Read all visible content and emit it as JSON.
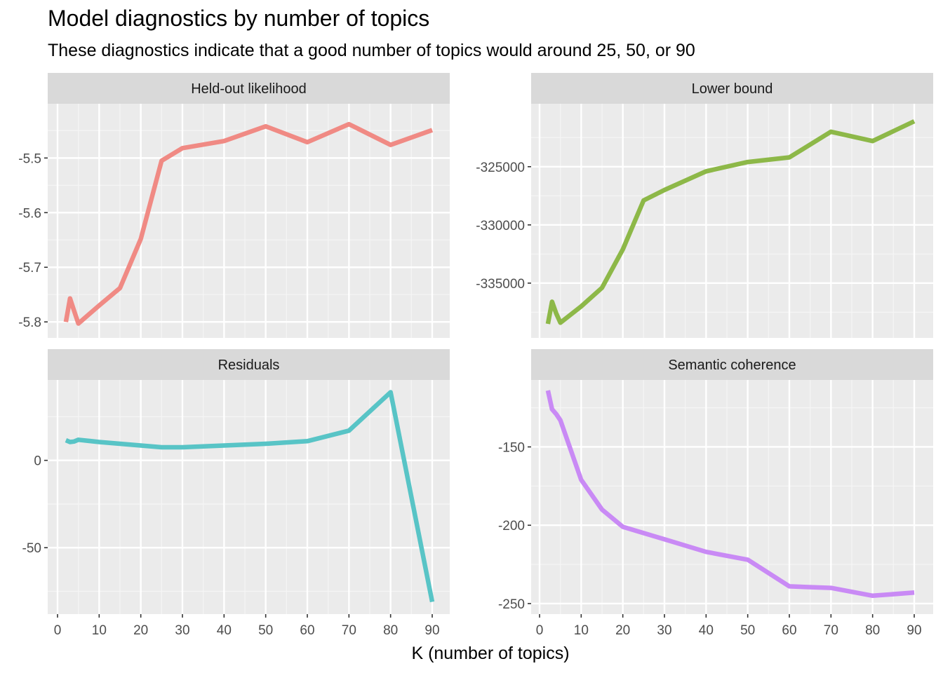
{
  "title": "Model diagnostics by number of topics",
  "subtitle": "These diagnostics indicate that a good number of topics would around 25, 50, or 90",
  "chart_data": {
    "type": "line",
    "xlabel": "K (number of topics)",
    "x": [
      2,
      3,
      4,
      5,
      10,
      15,
      20,
      25,
      30,
      40,
      50,
      60,
      70,
      80,
      90
    ],
    "xlim": [
      0,
      90
    ],
    "x_ticks": [
      0,
      10,
      20,
      30,
      40,
      50,
      60,
      70,
      80,
      90
    ],
    "grid": true,
    "legend": "none",
    "panels": [
      {
        "strip": "Held-out likelihood",
        "color": "#F08A84",
        "ylim": [
          -5.81,
          -5.42
        ],
        "y_ticks": [
          -5.8,
          -5.7,
          -5.6,
          -5.5
        ],
        "y_tick_labels": [
          "-5.8",
          "-5.7",
          "-5.6",
          "-5.5"
        ],
        "values": [
          -5.8,
          -5.757,
          -5.78,
          -5.803,
          -5.77,
          -5.738,
          -5.648,
          -5.505,
          -5.482,
          -5.469,
          -5.442,
          -5.471,
          -5.438,
          -5.476,
          -5.449
        ]
      },
      {
        "strip": "Lower bound",
        "color": "#8DB848",
        "ylim": [
          -338800,
          -320500
        ],
        "y_ticks": [
          -335000,
          -330000,
          -325000
        ],
        "y_tick_labels": [
          "-335000",
          "-330000",
          "-325000"
        ],
        "values": [
          -338500,
          -336600,
          -337600,
          -338400,
          -337000,
          -335400,
          -332100,
          -327900,
          -327000,
          -325400,
          -324600,
          -324200,
          -322000,
          -322800,
          -321100
        ]
      },
      {
        "strip": "Residuals",
        "color": "#58C4C6",
        "ylim": [
          -82,
          40
        ],
        "y_ticks": [
          -50,
          0
        ],
        "y_tick_labels": [
          "-50",
          "0"
        ],
        "values": [
          11.5,
          10.5,
          10.8,
          11.8,
          10.5,
          9.5,
          8.5,
          7.5,
          7.5,
          8.5,
          9.5,
          11.0,
          17.0,
          39.0,
          -81.0
        ]
      },
      {
        "strip": "Semantic coherence",
        "color": "#C98AF5",
        "ylim": [
          -250,
          -114
        ],
        "y_ticks": [
          -250,
          -200,
          -150
        ],
        "y_tick_labels": [
          "-250",
          "-200",
          "-150"
        ],
        "values": [
          -114,
          -126,
          -129,
          -133,
          -171,
          -190,
          -201,
          -205,
          -209,
          -217,
          -222,
          -239,
          -240,
          -245,
          -243
        ]
      }
    ]
  }
}
